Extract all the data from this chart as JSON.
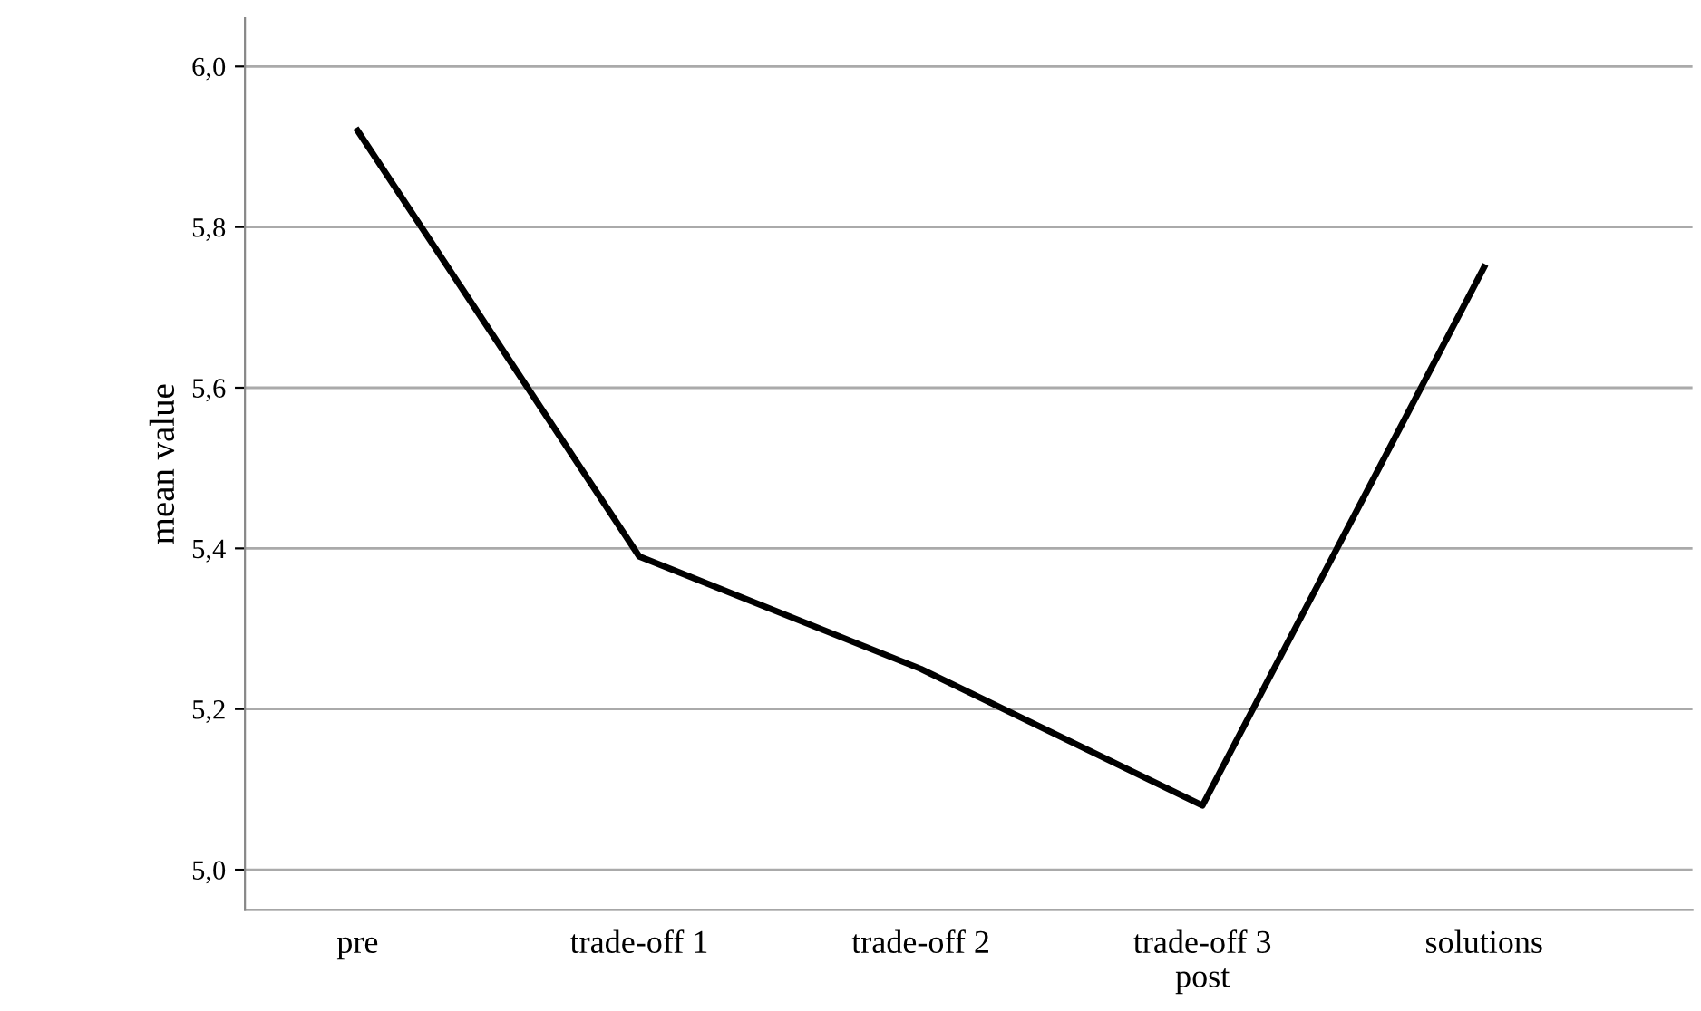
{
  "chart_data": {
    "type": "line",
    "ylabel": "mean value",
    "categories": [
      "pre",
      "trade-off 1",
      "trade-off 2",
      "trade-off 3\npost",
      "solutions"
    ],
    "series": [
      {
        "color": "#000000",
        "values": [
          5.92,
          5.39,
          5.25,
          5.08,
          5.75
        ]
      }
    ],
    "ylim": [
      4.95,
      6.06
    ],
    "yticks": [
      {
        "value": 5.0,
        "label": "5,0"
      },
      {
        "value": 5.2,
        "label": "5,2"
      },
      {
        "value": 5.4,
        "label": "5,4"
      },
      {
        "value": 5.6,
        "label": "5,6"
      },
      {
        "value": 5.8,
        "label": "5,8"
      },
      {
        "value": 6.0,
        "label": "6,0"
      }
    ],
    "grid": "y",
    "marker": "none",
    "line_style": "solid",
    "legend": false
  }
}
